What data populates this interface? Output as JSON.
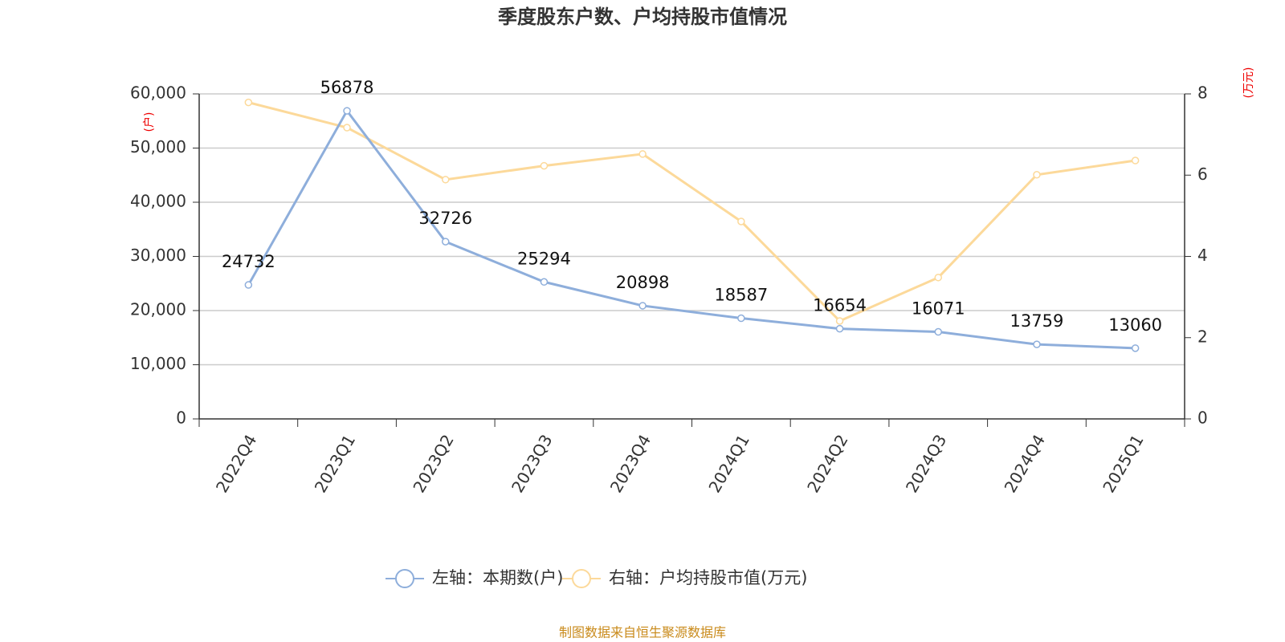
{
  "chart_data": {
    "type": "line",
    "title": "季度股东户数、户均持股市值情况",
    "y_unit": "(户)",
    "y2_unit": "(万元)",
    "categories": [
      "2022Q4",
      "2023Q1",
      "2023Q2",
      "2023Q3",
      "2023Q4",
      "2024Q1",
      "2024Q2",
      "2024Q3",
      "2024Q4",
      "2025Q1"
    ],
    "series": [
      {
        "name": "左轴：本期数(户)",
        "color": "#8eaedb",
        "values": [
          24732,
          56878,
          32726,
          25294,
          20898,
          18587,
          16654,
          16071,
          13759,
          13060
        ],
        "data_labels": true
      },
      {
        "name": "右轴：户均持股市值(万元)",
        "color": "#fcd99a",
        "axis": "y2",
        "values": [
          7.79,
          7.17,
          5.89,
          6.23,
          6.52,
          4.86,
          2.41,
          3.48,
          6.01,
          6.36
        ],
        "data_labels": false
      }
    ],
    "ylim": [
      0,
      60000
    ],
    "yticks": [
      0,
      {
        "value": 10000,
        "label": "10,000"
      },
      {
        "value": 20000,
        "label": "20,000"
      },
      {
        "value": 30000,
        "label": "30,000"
      },
      {
        "value": 40000,
        "label": "40,000"
      },
      {
        "value": 50000,
        "label": "50,000"
      },
      {
        "value": 60000,
        "label": "60,000"
      }
    ],
    "y2lim": [
      0,
      8
    ],
    "y2ticks": [
      0,
      2,
      4,
      6,
      8
    ],
    "grid": true,
    "legend": "bottom",
    "source": "制图数据来自恒生聚源数据库"
  }
}
